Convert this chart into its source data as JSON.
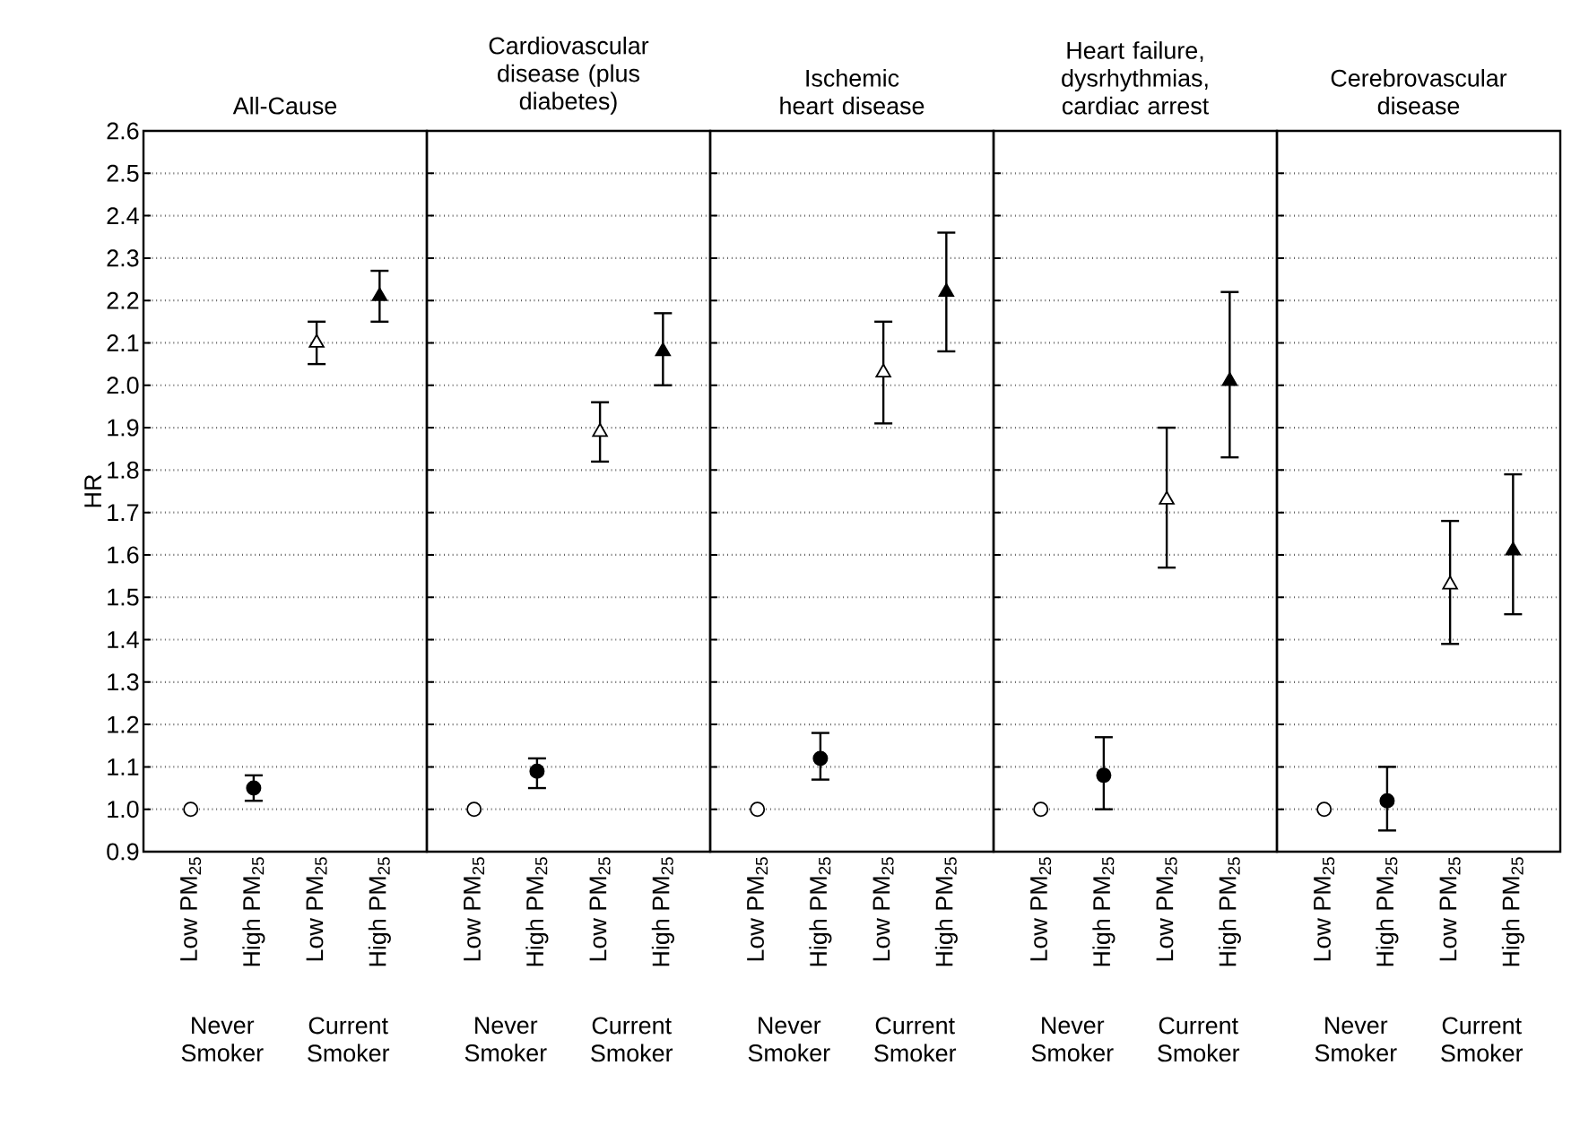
{
  "chart_data": [
    {
      "type": "scatter",
      "title": "All-Cause",
      "ylabel": "HR",
      "categories": [
        "Low PM$_{25}$",
        "High PM$_{25}$",
        "Low PM$_{25}$",
        "High PM$_{25}$"
      ],
      "annotations": [
        "Never Smoker",
        "Current Smoker"
      ],
      "ylim": [
        0.9,
        2.6
      ],
      "yticks": [
        {
          "value": 0.9,
          "label": "0.9"
        },
        {
          "value": 1.0,
          "label": "1.0"
        },
        {
          "value": 1.1,
          "label": "1.1"
        },
        {
          "value": 1.2,
          "label": "1.2"
        },
        {
          "value": 1.3,
          "label": "1.3"
        },
        {
          "value": 1.4,
          "label": "1.4"
        },
        {
          "value": 1.5,
          "label": "1.5"
        },
        {
          "value": 1.6,
          "label": "1.6"
        },
        {
          "value": 1.7,
          "label": "1.7"
        },
        {
          "value": 1.8,
          "label": "1.8"
        },
        {
          "value": 1.9,
          "label": "1.9"
        },
        {
          "value": 2.0,
          "label": "2.0"
        },
        {
          "value": 2.1,
          "label": "2.1"
        },
        {
          "value": 2.2,
          "label": "2.2"
        },
        {
          "value": 2.3,
          "label": "2.3"
        },
        {
          "value": 2.4,
          "label": "2.4"
        },
        {
          "value": 2.5,
          "label": "2.5"
        },
        {
          "value": 2.6,
          "label": "2.6"
        }
      ],
      "grid": "y",
      "series": [
        {
          "marker": "circle",
          "colors": [
            "#ffffff",
            "#000000",
            null,
            null
          ],
          "values": [
            1.0,
            1.05,
            null,
            null
          ],
          "errors": [
            null,
            [
              1.02,
              1.08
            ],
            null,
            null
          ]
        },
        {
          "marker": "triangle",
          "colors": [
            null,
            null,
            "#ffffff",
            "#000000"
          ],
          "values": [
            null,
            null,
            2.1,
            2.21
          ],
          "errors": [
            null,
            null,
            [
              2.05,
              2.15
            ],
            [
              2.15,
              2.27
            ]
          ]
        }
      ]
    },
    {
      "type": "scatter",
      "title": "Cardiovascular disease (plus diabetes)",
      "categories": [
        "Low PM$_{25}$",
        "High PM$_{25}$",
        "Low PM$_{25}$",
        "High PM$_{25}$"
      ],
      "annotations": [
        "Never Smoker",
        "Current Smoker"
      ],
      "ylim": [
        0.9,
        2.6
      ],
      "yticks": [
        0.9,
        1.0,
        1.1,
        1.2,
        1.3,
        1.4,
        1.5,
        1.6,
        1.7,
        1.8,
        1.9,
        2.0,
        2.1,
        2.2,
        2.3,
        2.4,
        2.5,
        2.6
      ],
      "grid": "y",
      "tick_labels": "x",
      "series": [
        {
          "marker": "circle",
          "colors": [
            "#ffffff",
            "#000000",
            null,
            null
          ],
          "values": [
            1.0,
            1.09,
            null,
            null
          ],
          "errors": [
            null,
            [
              1.05,
              1.12
            ],
            null,
            null
          ]
        },
        {
          "marker": "triangle",
          "colors": [
            null,
            null,
            "#ffffff",
            "#000000"
          ],
          "values": [
            null,
            null,
            1.89,
            2.08
          ],
          "errors": [
            null,
            null,
            [
              1.82,
              1.96
            ],
            [
              2.0,
              2.17
            ]
          ]
        }
      ]
    },
    {
      "type": "scatter",
      "title": "Ischemic heart disease",
      "categories": [
        "Low PM$_{25}$",
        "High PM$_{25}$",
        "Low PM$_{25}$",
        "High PM$_{25}$"
      ],
      "annotations": [
        "Never Smoker",
        "Current Smoker"
      ],
      "ylim": [
        0.9,
        2.6
      ],
      "yticks": [
        0.9,
        1.0,
        1.1,
        1.2,
        1.3,
        1.4,
        1.5,
        1.6,
        1.7,
        1.8,
        1.9,
        2.0,
        2.1,
        2.2,
        2.3,
        2.4,
        2.5,
        2.6
      ],
      "grid": "y",
      "tick_labels": "x",
      "series": [
        {
          "marker": "circle",
          "colors": [
            "#ffffff",
            "#000000",
            null,
            null
          ],
          "values": [
            1.0,
            1.12,
            null,
            null
          ],
          "errors": [
            null,
            [
              1.07,
              1.18
            ],
            null,
            null
          ]
        },
        {
          "marker": "triangle",
          "colors": [
            null,
            null,
            "#ffffff",
            "#000000"
          ],
          "values": [
            null,
            null,
            2.03,
            2.22
          ],
          "errors": [
            null,
            null,
            [
              1.91,
              2.15
            ],
            [
              2.08,
              2.36
            ]
          ]
        }
      ]
    },
    {
      "type": "scatter",
      "title": "Heart failure, dysrhythmias, cardiac arrest",
      "categories": [
        "Low PM$_{25}$",
        "High PM$_{25}$",
        "Low PM$_{25}$",
        "High PM$_{25}$"
      ],
      "annotations": [
        "Never Smoker",
        "Current Smoker"
      ],
      "ylim": [
        0.9,
        2.6
      ],
      "yticks": [
        0.9,
        1.0,
        1.1,
        1.2,
        1.3,
        1.4,
        1.5,
        1.6,
        1.7,
        1.8,
        1.9,
        2.0,
        2.1,
        2.2,
        2.3,
        2.4,
        2.5,
        2.6
      ],
      "grid": "y",
      "tick_labels": "x",
      "series": [
        {
          "marker": "circle",
          "colors": [
            "#ffffff",
            "#000000",
            null,
            null
          ],
          "values": [
            1.0,
            1.08,
            null,
            null
          ],
          "errors": [
            null,
            [
              1.0,
              1.17
            ],
            null,
            null
          ]
        },
        {
          "marker": "triangle",
          "colors": [
            null,
            null,
            "#ffffff",
            "#000000"
          ],
          "values": [
            null,
            null,
            1.73,
            2.01
          ],
          "errors": [
            null,
            null,
            [
              1.57,
              1.9
            ],
            [
              1.83,
              2.22
            ]
          ]
        }
      ]
    },
    {
      "type": "scatter",
      "title": "Cerebrovascular disease",
      "categories": [
        "Low PM$_{25}$",
        "High PM$_{25}$",
        "Low PM$_{25}$",
        "High PM$_{25}$"
      ],
      "annotations": [
        "Never Smoker",
        "Current Smoker"
      ],
      "ylim": [
        0.9,
        2.6
      ],
      "yticks": [
        0.9,
        1.0,
        1.1,
        1.2,
        1.3,
        1.4,
        1.5,
        1.6,
        1.7,
        1.8,
        1.9,
        2.0,
        2.1,
        2.2,
        2.3,
        2.4,
        2.5,
        2.6
      ],
      "grid": "y",
      "tick_labels": "x",
      "series": [
        {
          "marker": "circle",
          "colors": [
            "#ffffff",
            "#000000",
            null,
            null
          ],
          "values": [
            1.0,
            1.02,
            null,
            null
          ],
          "errors": [
            null,
            [
              0.95,
              1.1
            ],
            null,
            null
          ]
        },
        {
          "marker": "triangle",
          "colors": [
            null,
            null,
            "#ffffff",
            "#000000"
          ],
          "values": [
            null,
            null,
            1.53,
            1.61
          ],
          "errors": [
            null,
            null,
            [
              1.39,
              1.68
            ],
            [
              1.46,
              1.79
            ]
          ]
        }
      ]
    }
  ]
}
